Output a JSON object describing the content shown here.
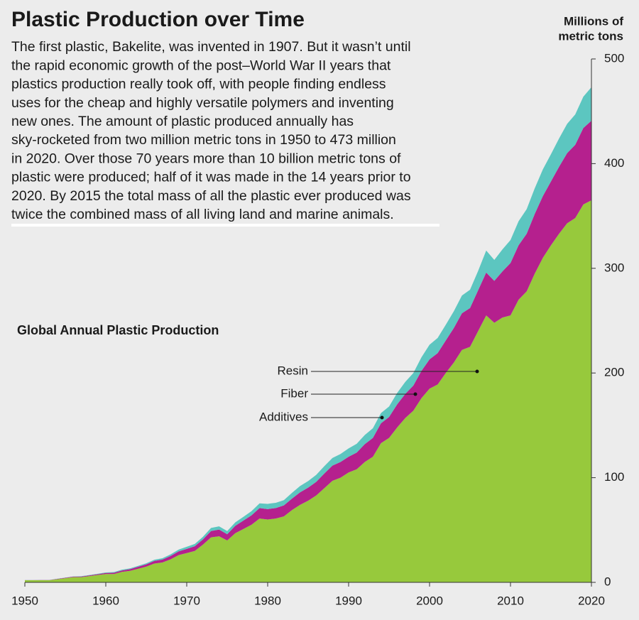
{
  "chart_data": {
    "type": "stacked_area",
    "title": "Plastic Production over Time",
    "description": [
      "The first plastic, Bakelite, was invented in 1907. But it wasn’t until",
      "the rapid economic growth of the post–World War II years that",
      "plastics production really took off, with people finding endless",
      "uses for the cheap and highly versatile polymers and inventing",
      "new ones. The amount of plastic produced annually has",
      "sky-rocketed from two million metric tons in 1950 to 473 million",
      "in 2020. Over those 70 years more than 10 billion metric tons of",
      "plastic were produced; half of it was made in the 14 years prior to",
      "2020. By 2015 the total mass of all the plastic ever produced was",
      "twice the combined mass of all living land and marine animals."
    ],
    "subtitle": "Global Annual Plastic Production",
    "y_label": [
      "Millions of",
      "metric tons"
    ],
    "x": [
      1950,
      1951,
      1952,
      1953,
      1954,
      1955,
      1956,
      1957,
      1958,
      1959,
      1960,
      1961,
      1962,
      1963,
      1964,
      1965,
      1966,
      1967,
      1968,
      1969,
      1970,
      1971,
      1972,
      1973,
      1974,
      1975,
      1976,
      1977,
      1978,
      1979,
      1980,
      1981,
      1982,
      1983,
      1984,
      1985,
      1986,
      1987,
      1988,
      1989,
      1990,
      1991,
      1992,
      1993,
      1994,
      1995,
      1996,
      1997,
      1998,
      1999,
      2000,
      2001,
      2002,
      2003,
      2004,
      2005,
      2006,
      2007,
      2008,
      2009,
      2010,
      2011,
      2012,
      2013,
      2014,
      2015,
      2016,
      2017,
      2018,
      2019,
      2020
    ],
    "series": [
      {
        "name": "Resin",
        "color": "#97c93c",
        "values": [
          2,
          2,
          2,
          2,
          3,
          4,
          5,
          5,
          6,
          7,
          8,
          8,
          10,
          11,
          13,
          15,
          18,
          19,
          22,
          26,
          28,
          30,
          36,
          43,
          44,
          40,
          47,
          51,
          55,
          61,
          60,
          61,
          63,
          69,
          74,
          78,
          83,
          90,
          97,
          100,
          105,
          108,
          115,
          120,
          133,
          138,
          148,
          157,
          164,
          176,
          185,
          189,
          200,
          210,
          222,
          225,
          240,
          255,
          248,
          253,
          255,
          270,
          278,
          295,
          310,
          322,
          333,
          343,
          348,
          361,
          365
        ]
      },
      {
        "name": "Fiber",
        "color": "#b5208e",
        "values": [
          0.1,
          0.1,
          0.2,
          0.2,
          0.3,
          0.4,
          0.5,
          0.6,
          0.7,
          0.8,
          1,
          1.2,
          1.4,
          1.6,
          1.9,
          2.2,
          2.5,
          2.8,
          3.2,
          3.6,
          4,
          4.5,
          5,
          6,
          6.5,
          6,
          7,
          8,
          9,
          10,
          10,
          10,
          10.5,
          11,
          12,
          12.5,
          13,
          14,
          14.5,
          15,
          15,
          16,
          17,
          18,
          19,
          20,
          22,
          23,
          24,
          26,
          28,
          30,
          31,
          33,
          35,
          37,
          39,
          41,
          40,
          44,
          50,
          52,
          55,
          57,
          59,
          61,
          64,
          67,
          70,
          73,
          76
        ]
      },
      {
        "name": "Additives",
        "color": "#5cc6c0",
        "values": [
          0.1,
          0.1,
          0.1,
          0.1,
          0.2,
          0.2,
          0.2,
          0.3,
          0.3,
          0.4,
          0.5,
          0.6,
          0.7,
          0.8,
          0.9,
          1,
          1.1,
          1.3,
          1.5,
          1.7,
          2,
          2.2,
          2.5,
          3,
          3,
          3,
          3.3,
          3.6,
          4,
          4.5,
          5,
          5,
          5,
          5.5,
          6,
          6.3,
          6.7,
          7,
          7.3,
          7.6,
          8,
          8.4,
          8.8,
          9.2,
          9.7,
          10,
          11,
          11.5,
          12,
          13,
          14,
          14.5,
          15,
          16,
          17,
          17.5,
          18.5,
          21,
          20,
          21,
          22,
          23,
          23.5,
          24.5,
          25.5,
          26,
          27,
          28,
          29,
          30,
          32
        ]
      }
    ],
    "xlim": [
      1950,
      2020
    ],
    "xticks": [
      1950,
      1960,
      1970,
      1980,
      1990,
      2000,
      2010,
      2020
    ],
    "ylim": [
      0,
      500
    ],
    "yticks": [
      0,
      100,
      200,
      300,
      400,
      500
    ]
  }
}
